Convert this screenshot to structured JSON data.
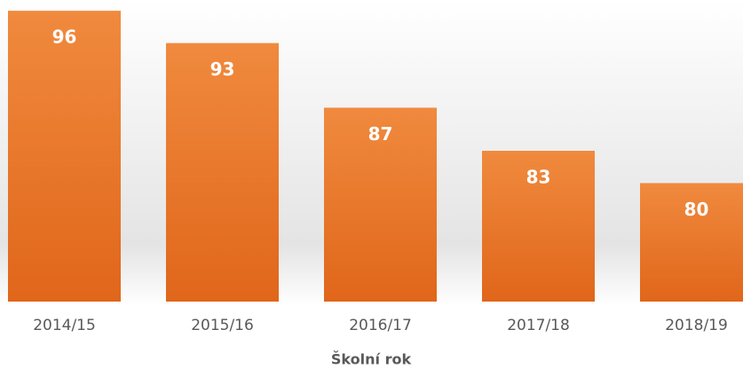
{
  "chart_data": {
    "type": "bar",
    "xlabel": "Školní rok",
    "categories": [
      "2014/15",
      "2015/16",
      "2016/17",
      "2017/18",
      "2018/19"
    ],
    "values": [
      96,
      93,
      87,
      83,
      80
    ],
    "color": "#ec7a2c",
    "ylim": [
      69,
      97
    ]
  }
}
